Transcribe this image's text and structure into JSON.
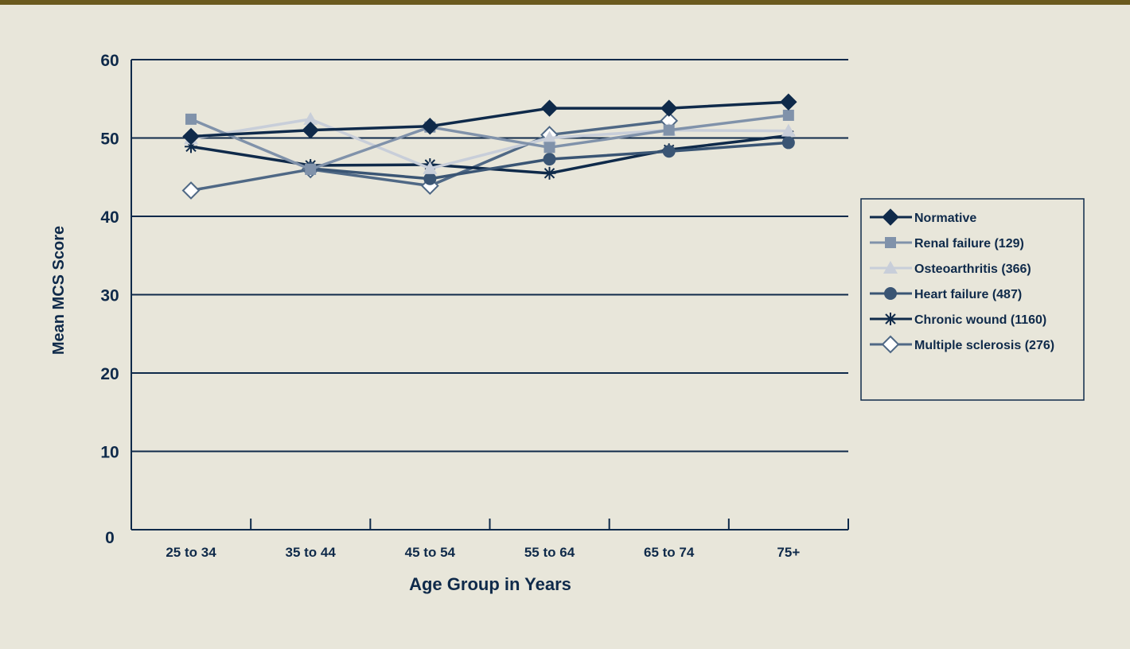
{
  "chart_data": {
    "type": "line",
    "title": "",
    "xlabel": "Age Group in Years",
    "ylabel": "Mean MCS Score",
    "ylim": [
      0,
      60
    ],
    "yticks": [
      "0",
      "10",
      "20",
      "30",
      "40",
      "50",
      "60"
    ],
    "categories": [
      "25 to 34",
      "35 to 44",
      "45 to 54",
      "55 to 64",
      "65 to 74",
      "75+"
    ],
    "grid": true,
    "legend_position": "right",
    "series": [
      {
        "name": "Normative",
        "marker": "diamond-filled",
        "color": "#0f2a4a",
        "values": [
          50.2,
          51.0,
          51.5,
          53.8,
          53.8,
          54.6
        ]
      },
      {
        "name": "Renal failure (129)",
        "marker": "square",
        "color": "#8092aa",
        "values": [
          52.4,
          46.0,
          51.4,
          48.8,
          51.0,
          52.9
        ]
      },
      {
        "name": "Osteoarthritis (366)",
        "marker": "triangle",
        "color": "#c8ced9",
        "values": [
          49.9,
          52.4,
          46.1,
          50.0,
          51.0,
          50.9
        ]
      },
      {
        "name": "Heart failure (487)",
        "marker": "circle",
        "color": "#3a5574",
        "values": [
          null,
          46.1,
          44.8,
          47.3,
          48.3,
          49.4
        ]
      },
      {
        "name": "Chronic wound (1160)",
        "marker": "asterisk",
        "color": "#0f2a4a",
        "values": [
          48.9,
          46.5,
          46.6,
          45.5,
          48.5,
          50.3
        ]
      },
      {
        "name": "Multiple sclerosis (276)",
        "marker": "diamond-open",
        "color": "#4f6885",
        "values": [
          43.3,
          46.0,
          43.9,
          50.4,
          52.2,
          null
        ]
      }
    ]
  }
}
